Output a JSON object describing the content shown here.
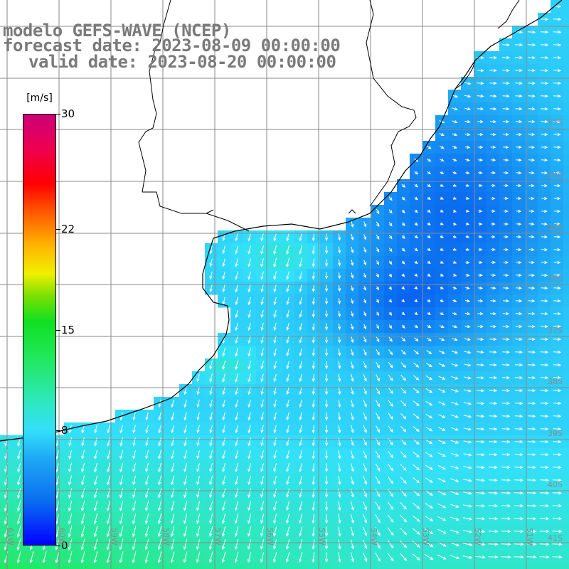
{
  "title": {
    "line1": "modelo GEFS-WAVE (NCEP)",
    "line2": "forecast date: 2023-08-09 00:00:00",
    "line3": "valid date: 2023-08-20 00:00:00"
  },
  "colorbar": {
    "unit": "[m/s]",
    "range": [
      0,
      30
    ],
    "ticks": [
      {
        "label": "30",
        "value": 30
      },
      {
        "label": "22",
        "value": 22
      },
      {
        "label": "15",
        "value": 15
      },
      {
        "label": "8",
        "value": 8
      },
      {
        "label": "0",
        "value": 0
      }
    ]
  },
  "lat_labels": [
    "33S",
    "34S",
    "35S",
    "36S",
    "37S",
    "38S",
    "39S",
    "40S",
    "41S"
  ],
  "lon_labels": [
    "61W",
    "60W",
    "59W",
    "58W",
    "57W",
    "56W",
    "55W",
    "54W",
    "53W",
    "52W",
    "51W"
  ],
  "colors": {
    "land": "#ffffff",
    "grid": "#888888",
    "coast": "#000000",
    "arrow": "#ffffff",
    "title_text": "#7a7a7a"
  },
  "field": {
    "variable": "wind speed",
    "arrow_color": "white",
    "dominant_direction": "north-to-south near coast, west-to-east offshore"
  }
}
